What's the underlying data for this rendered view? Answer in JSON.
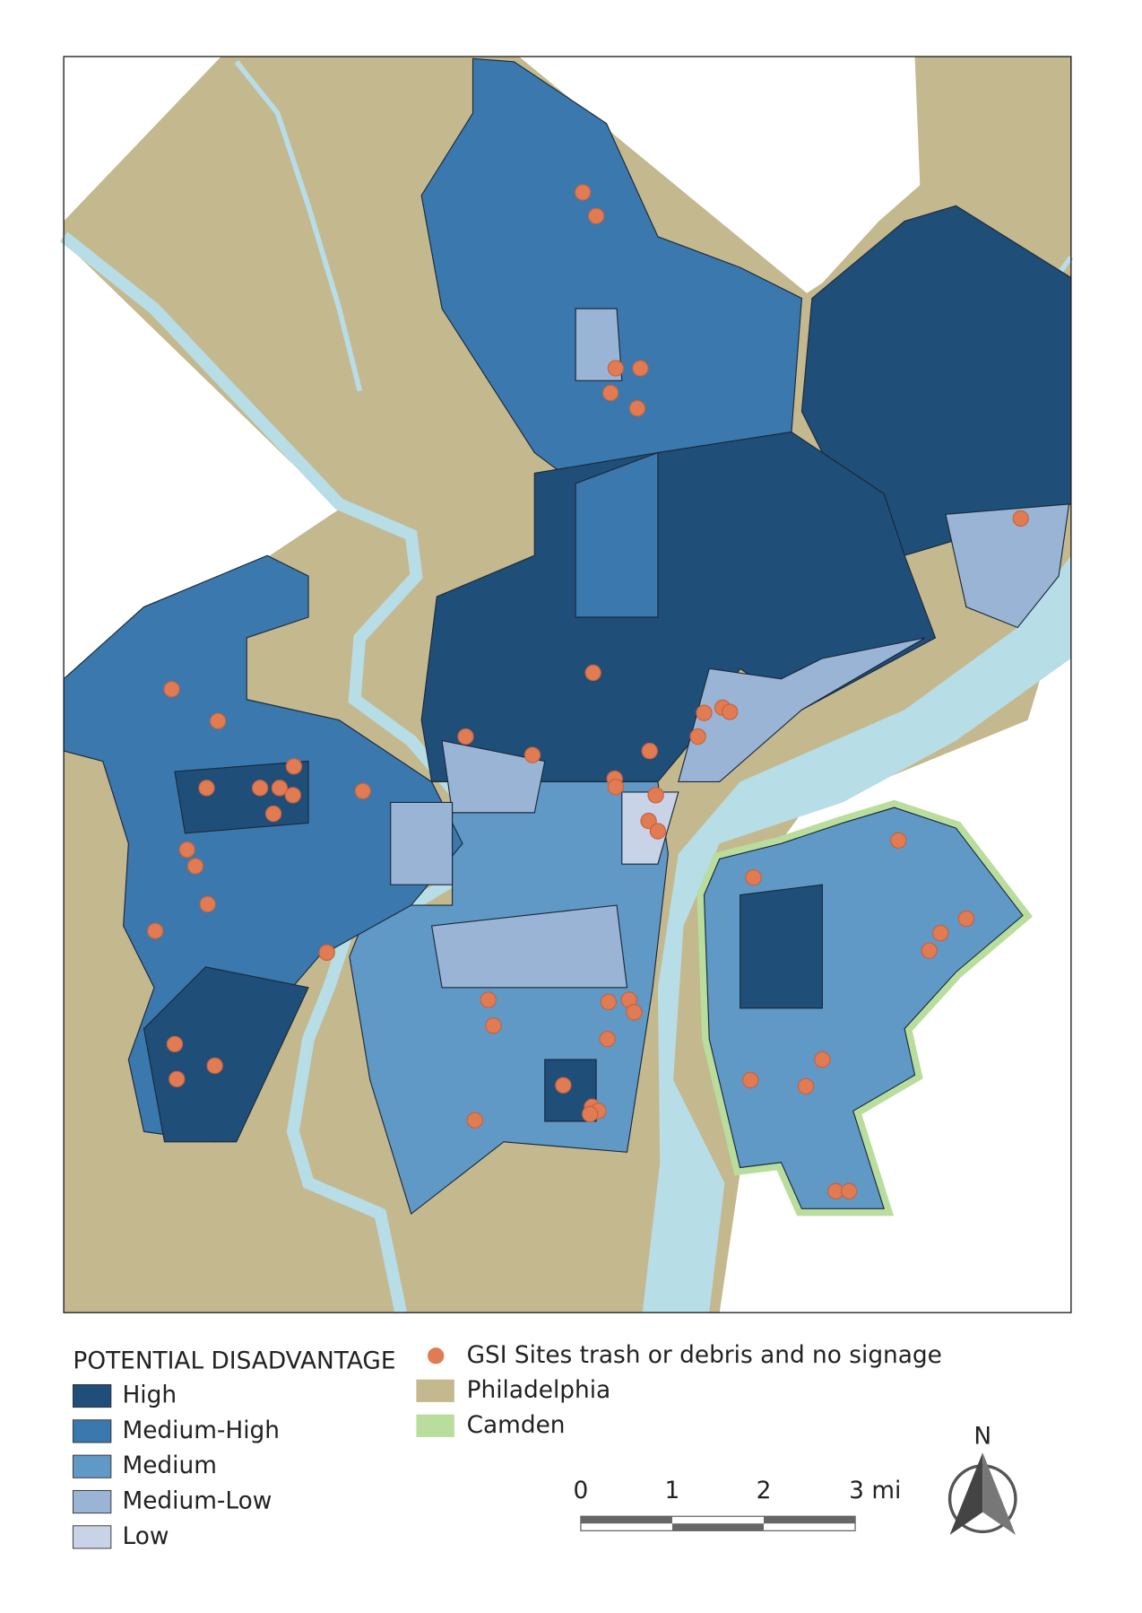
{
  "legend": {
    "title": "POTENTIAL DISADVANTAGE",
    "classes": [
      {
        "label": "High",
        "color": "#1f4e79"
      },
      {
        "label": "Medium-High",
        "color": "#3a78ad"
      },
      {
        "label": "Medium",
        "color": "#6098c6"
      },
      {
        "label": "Medium-Low",
        "color": "#9ab4d6"
      },
      {
        "label": "Low",
        "color": "#c9d3e8"
      }
    ],
    "layers": [
      {
        "label": "GSI Sites trash or debris and no signage",
        "color": "#e07b53"
      },
      {
        "label": "Philadelphia",
        "color": "#c4b88f"
      },
      {
        "label": "Camden",
        "color": "#b9dd9c"
      }
    ]
  },
  "scale_bar": {
    "labels": [
      "0",
      "1",
      "2",
      "3 mi"
    ]
  },
  "north_arrow": {
    "label": "N"
  }
}
